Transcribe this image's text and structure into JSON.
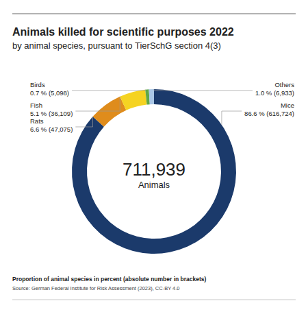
{
  "chart_data": {
    "type": "donut",
    "title": "Animals killed for scientific purposes 2022",
    "subtitle": "by animal species, pursuant to TierSchG section 4(3)",
    "categories": [
      "Mice",
      "Rats",
      "Fish",
      "Birds",
      "Others"
    ],
    "values": [
      86.6,
      6.6,
      5.1,
      0.7,
      1.0
    ],
    "value_labels": [
      "86.6 % (616,724)",
      "6.6 % (47,075)",
      "5.1 % (36,109)",
      "0.7 % (5,098)",
      "1.0 % (6,933)"
    ],
    "colors": [
      "#1b3a6b",
      "#df8c1c",
      "#f5d322",
      "#5fa84a",
      "#aac7e6"
    ],
    "data_labels": true,
    "center_label": "711,939",
    "center_sublabel": "Animals",
    "footnote": "Proportion of animal species in percent (absolute number in brackets)",
    "source": "Source: German Federal Institute for Risk Assessment (2023), CC-BY 4.0"
  }
}
